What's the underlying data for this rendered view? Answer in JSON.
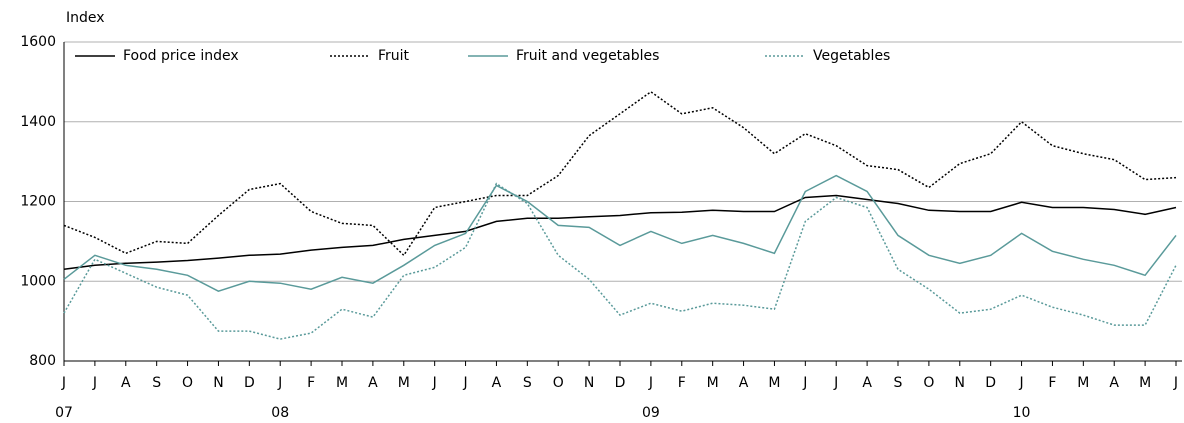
{
  "chart_data": {
    "type": "line",
    "y_label": "Index",
    "categories": [
      "J",
      "J",
      "A",
      "S",
      "O",
      "N",
      "D",
      "J",
      "F",
      "M",
      "A",
      "M",
      "J",
      "J",
      "A",
      "S",
      "O",
      "N",
      "D",
      "J",
      "F",
      "M",
      "A",
      "M",
      "J",
      "J",
      "A",
      "S",
      "O",
      "N",
      "D",
      "J",
      "F",
      "M",
      "A",
      "M",
      "J"
    ],
    "year_labels": [
      "07",
      null,
      null,
      null,
      null,
      null,
      null,
      "08",
      null,
      null,
      null,
      null,
      null,
      null,
      null,
      null,
      null,
      null,
      null,
      "09",
      null,
      null,
      null,
      null,
      null,
      null,
      null,
      null,
      null,
      null,
      null,
      "10",
      null,
      null,
      null,
      null,
      null
    ],
    "ylim": [
      800,
      1600
    ],
    "yticks": [
      800,
      1000,
      1200,
      1400,
      1600
    ],
    "grid": true,
    "series": [
      {
        "name": "Food price index",
        "color": "#000000",
        "dash": "solid",
        "values": [
          1030,
          1040,
          1045,
          1048,
          1052,
          1058,
          1065,
          1068,
          1078,
          1085,
          1090,
          1105,
          1115,
          1125,
          1150,
          1158,
          1158,
          1162,
          1165,
          1172,
          1173,
          1178,
          1175,
          1175,
          1210,
          1215,
          1205,
          1195,
          1178,
          1175,
          1175,
          1198,
          1185,
          1185,
          1180,
          1168,
          1185
        ]
      },
      {
        "name": "Fruit",
        "color": "#000000",
        "dash": "dotted",
        "values": [
          1140,
          1110,
          1070,
          1100,
          1095,
          1165,
          1230,
          1245,
          1175,
          1145,
          1140,
          1065,
          1185,
          1200,
          1215,
          1215,
          1265,
          1365,
          1420,
          1475,
          1420,
          1435,
          1385,
          1320,
          1370,
          1340,
          1290,
          1280,
          1235,
          1295,
          1320,
          1400,
          1340,
          1320,
          1305,
          1255,
          1260
        ]
      },
      {
        "name": "Fruit and vegetables",
        "color": "#5a9a9a",
        "dash": "solid",
        "values": [
          1005,
          1065,
          1040,
          1030,
          1015,
          975,
          1000,
          995,
          980,
          1010,
          995,
          1040,
          1090,
          1120,
          1240,
          1200,
          1140,
          1135,
          1090,
          1125,
          1095,
          1115,
          1095,
          1070,
          1225,
          1265,
          1225,
          1115,
          1065,
          1045,
          1065,
          1120,
          1075,
          1055,
          1040,
          1015,
          1115
        ]
      },
      {
        "name": "Vegetables",
        "color": "#5a9a9a",
        "dash": "dotted",
        "values": [
          920,
          1055,
          1020,
          985,
          965,
          875,
          875,
          855,
          870,
          930,
          910,
          1015,
          1035,
          1085,
          1245,
          1195,
          1065,
          1005,
          915,
          945,
          925,
          945,
          940,
          930,
          1150,
          1210,
          1185,
          1030,
          980,
          920,
          930,
          965,
          935,
          915,
          890,
          890,
          1040
        ]
      }
    ]
  }
}
